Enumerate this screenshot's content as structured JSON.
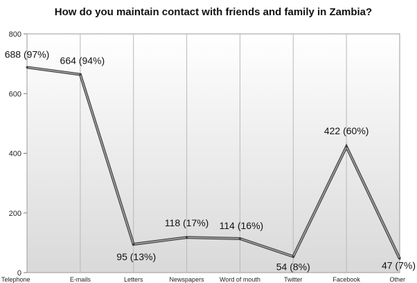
{
  "chart_data": {
    "type": "line",
    "title": "How do you maintain contact with friends and family in Zambia?",
    "xlabel": "",
    "ylabel": "",
    "categories": [
      "Telephone",
      "E-mails",
      "Letters",
      "Newspapers",
      "Word of mouth",
      "Twitter",
      "Facebook",
      "Other"
    ],
    "values": [
      688,
      664,
      95,
      118,
      114,
      54,
      422,
      47
    ],
    "data_labels": [
      "688 (97%)",
      "664 (94%)",
      "95 (13%)",
      "118 (17%)",
      "114 (16%)",
      "54 (8%)",
      "422 (60%)",
      "47 (7%)"
    ],
    "ylim": [
      0,
      800
    ],
    "yticks": [
      0,
      200,
      400,
      600,
      800
    ],
    "grid": "vertical",
    "legend": "none",
    "colors": {
      "line": "#9a9a9a",
      "line_outline": "#3a3a3a",
      "grid": "#b8b8b8",
      "background_top": "#ffffff",
      "background_bottom": "#d9d9d9"
    }
  }
}
